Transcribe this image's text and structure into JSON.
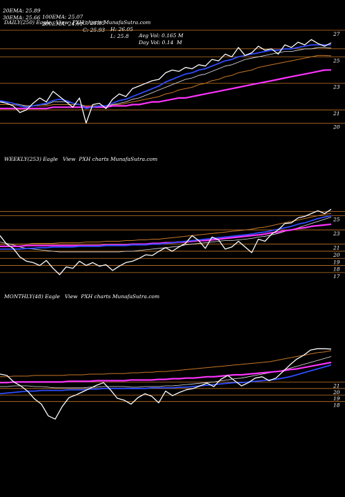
{
  "header": {
    "row1": [
      "20EMA: 25.89",
      "100EMA: 25.07",
      "C: 26.05",
      "H: 26.05",
      "Avg Vol: 0.165 M"
    ],
    "row2": [
      "30EMA: 25.66",
      "200EMA: 24.01",
      "C: 25.93",
      "L: 25.8",
      "Day Vol: 0.14  M"
    ]
  },
  "colors": {
    "background": "#000000",
    "price": "#ffffff",
    "ema_blue": "#2f4cff",
    "ema_pink": "#ff33ff",
    "ema_orange": "#c87828",
    "ema_light": "#e8e8e8",
    "gridline": "#c87828"
  },
  "chart_data": [
    {
      "type": "line",
      "title": "DAILY(250) Eagle   View  PXH charts MunafaSutra.com",
      "y_ticks": [
        "27",
        "25",
        "23",
        "21",
        "20"
      ],
      "gridlines": [
        27,
        25.6,
        25,
        23,
        21,
        20
      ],
      "ylim": [
        19.5,
        27.2
      ],
      "x": [
        0,
        5,
        10,
        15,
        20,
        25,
        30,
        35,
        40,
        45,
        50,
        55,
        60,
        65,
        70,
        75,
        80,
        85,
        90,
        95,
        100,
        105,
        110,
        115,
        120,
        125,
        130,
        135,
        140,
        145,
        150,
        155,
        160,
        165,
        170,
        175,
        180,
        185,
        190,
        195,
        200,
        205,
        210,
        215,
        220,
        225,
        230,
        235,
        240,
        245,
        250
      ],
      "series": [
        {
          "name": "",
          "role": "price",
          "values": [
            21.6,
            21.5,
            21.3,
            20.8,
            21.0,
            21.5,
            21.9,
            21.6,
            22.4,
            22.0,
            21.6,
            21.2,
            21.9,
            20.0,
            21.4,
            21.5,
            21.1,
            21.8,
            22.2,
            22.0,
            22.6,
            22.8,
            23.0,
            23.2,
            23.3,
            23.8,
            24.0,
            23.9,
            24.2,
            24.1,
            24.4,
            24.3,
            24.8,
            24.7,
            25.2,
            25.0,
            25.7,
            25.1,
            25.3,
            25.8,
            25.5,
            25.6,
            25.2,
            25.9,
            25.7,
            26.1,
            25.9,
            26.3,
            26.0,
            25.8,
            26.05
          ]
        },
        {
          "name": "",
          "role": "ema_blue",
          "values": [
            21.7,
            21.6,
            21.5,
            21.3,
            21.2,
            21.3,
            21.4,
            21.5,
            21.7,
            21.8,
            21.7,
            21.5,
            21.4,
            21.1,
            21.2,
            21.3,
            21.3,
            21.5,
            21.7,
            21.8,
            22.0,
            22.2,
            22.4,
            22.6,
            22.8,
            23.1,
            23.3,
            23.5,
            23.7,
            23.8,
            24.0,
            24.1,
            24.3,
            24.5,
            24.7,
            24.8,
            25.0,
            25.1,
            25.2,
            25.3,
            25.4,
            25.5,
            25.5,
            25.6,
            25.6,
            25.7,
            25.8,
            25.9,
            25.9,
            25.9,
            25.9
          ]
        },
        {
          "name": "",
          "role": "ema_pink",
          "values": [
            21.1,
            21.1,
            21.1,
            21.1,
            21.1,
            21.1,
            21.1,
            21.1,
            21.2,
            21.2,
            21.2,
            21.2,
            21.2,
            21.2,
            21.2,
            21.2,
            21.2,
            21.3,
            21.3,
            21.3,
            21.4,
            21.4,
            21.5,
            21.6,
            21.6,
            21.7,
            21.8,
            21.9,
            21.9,
            22.0,
            22.1,
            22.2,
            22.3,
            22.4,
            22.5,
            22.6,
            22.7,
            22.8,
            22.9,
            23.0,
            23.1,
            23.2,
            23.3,
            23.4,
            23.5,
            23.6,
            23.7,
            23.8,
            23.9,
            24.0,
            24.01
          ]
        },
        {
          "name": "",
          "role": "ema_orange",
          "values": [
            21.4,
            21.4,
            21.4,
            21.3,
            21.3,
            21.3,
            21.3,
            21.3,
            21.4,
            21.4,
            21.4,
            21.4,
            21.4,
            21.3,
            21.3,
            21.3,
            21.3,
            21.4,
            21.4,
            21.5,
            21.6,
            21.7,
            21.8,
            21.9,
            22.0,
            22.2,
            22.3,
            22.5,
            22.6,
            22.7,
            22.9,
            23.0,
            23.2,
            23.3,
            23.5,
            23.6,
            23.8,
            23.9,
            24.0,
            24.2,
            24.3,
            24.4,
            24.5,
            24.6,
            24.7,
            24.8,
            24.9,
            25.0,
            25.1,
            25.1,
            25.07
          ]
        },
        {
          "name": "",
          "role": "ema_light",
          "values": [
            21.6,
            21.6,
            21.5,
            21.4,
            21.3,
            21.3,
            21.4,
            21.4,
            21.6,
            21.6,
            21.6,
            21.5,
            21.4,
            21.2,
            21.2,
            21.2,
            21.2,
            21.4,
            21.5,
            21.6,
            21.8,
            21.9,
            22.1,
            22.3,
            22.5,
            22.7,
            22.9,
            23.1,
            23.3,
            23.4,
            23.6,
            23.7,
            23.9,
            24.1,
            24.3,
            24.4,
            24.6,
            24.8,
            24.9,
            25.0,
            25.1,
            25.2,
            25.3,
            25.4,
            25.4,
            25.5,
            25.6,
            25.6,
            25.7,
            25.7,
            25.66
          ]
        }
      ]
    },
    {
      "type": "line",
      "title": "WEEKLY(253) Eagle   View  PXH charts MunafaSutra.com",
      "y_ticks": [
        "25",
        "23",
        "21",
        "20",
        "19",
        "18",
        "17"
      ],
      "gridlines": [
        25.6,
        25,
        23,
        21,
        20,
        19,
        18,
        17
      ],
      "ylim": [
        16.5,
        26.6
      ],
      "x": [
        0,
        5,
        10,
        15,
        20,
        25,
        30,
        35,
        40,
        45,
        50,
        55,
        60,
        65,
        70,
        75,
        80,
        85,
        90,
        95,
        100,
        105,
        110,
        115,
        120,
        125,
        130,
        135,
        140,
        145,
        150,
        155,
        160,
        165,
        170,
        175,
        180,
        185,
        190,
        195,
        200,
        205,
        210,
        215,
        220,
        225,
        230,
        235,
        240,
        245,
        250
      ],
      "series": [
        {
          "name": "",
          "role": "price",
          "values": [
            22.2,
            21.0,
            20.4,
            19.2,
            18.6,
            18.4,
            18.0,
            18.7,
            17.6,
            16.7,
            17.8,
            17.6,
            18.6,
            18.0,
            18.4,
            17.9,
            18.1,
            17.3,
            17.9,
            18.4,
            18.6,
            19.0,
            19.5,
            19.4,
            20.0,
            20.5,
            20.0,
            20.6,
            21.1,
            22.2,
            21.5,
            20.4,
            22.0,
            21.6,
            20.3,
            20.6,
            21.4,
            20.6,
            19.8,
            21.7,
            21.4,
            22.4,
            23.0,
            23.9,
            24.0,
            24.7,
            24.9,
            25.3,
            25.7,
            25.3,
            25.9
          ]
        },
        {
          "name": "",
          "role": "ema_blue",
          "values": [
            20.3,
            20.3,
            20.3,
            20.3,
            20.4,
            20.4,
            20.5,
            20.5,
            20.6,
            20.6,
            20.6,
            20.6,
            20.7,
            20.7,
            20.7,
            20.7,
            20.8,
            20.8,
            20.8,
            20.8,
            20.9,
            20.9,
            20.9,
            21.0,
            21.0,
            21.1,
            21.2,
            21.3,
            21.4,
            21.5,
            21.6,
            21.7,
            21.8,
            21.9,
            22.0,
            22.1,
            22.2,
            22.3,
            22.4,
            22.6,
            22.7,
            22.9,
            23.1,
            23.3,
            23.5,
            23.8,
            24.0,
            24.3,
            24.6,
            24.8,
            25.0
          ]
        },
        {
          "name": "",
          "role": "ema_pink",
          "values": [
            20.7,
            20.7,
            20.7,
            20.7,
            20.8,
            20.8,
            20.8,
            20.8,
            20.8,
            20.8,
            20.8,
            20.8,
            20.8,
            20.8,
            20.8,
            20.8,
            20.9,
            20.9,
            20.9,
            20.9,
            21.0,
            21.0,
            21.0,
            21.1,
            21.1,
            21.2,
            21.2,
            21.3,
            21.3,
            21.4,
            21.5,
            21.5,
            21.6,
            21.7,
            21.8,
            21.9,
            22.0,
            22.1,
            22.2,
            22.3,
            22.4,
            22.6,
            22.7,
            22.9,
            23.0,
            23.2,
            23.3,
            23.5,
            23.6,
            23.7,
            23.8
          ]
        },
        {
          "name": "",
          "role": "ema_orange",
          "values": [
            21.0,
            21.0,
            21.0,
            21.0,
            21.0,
            21.1,
            21.1,
            21.1,
            21.1,
            21.2,
            21.2,
            21.2,
            21.2,
            21.3,
            21.3,
            21.3,
            21.4,
            21.4,
            21.4,
            21.5,
            21.5,
            21.6,
            21.6,
            21.7,
            21.7,
            21.8,
            21.9,
            22.0,
            22.1,
            22.2,
            22.3,
            22.4,
            22.5,
            22.6,
            22.7,
            22.8,
            22.9,
            23.0,
            23.1,
            23.3,
            23.4,
            23.6,
            23.8,
            24.0,
            24.2,
            24.4,
            24.6,
            24.8,
            25.0,
            25.2,
            25.3
          ]
        },
        {
          "name": "",
          "role": "ema_light",
          "values": [
            21.3,
            21.1,
            20.9,
            20.6,
            20.4,
            20.3,
            20.2,
            20.1,
            20.0,
            19.9,
            19.9,
            19.9,
            19.9,
            19.9,
            19.9,
            19.9,
            19.9,
            19.9,
            19.9,
            20.0,
            20.0,
            20.1,
            20.2,
            20.3,
            20.4,
            20.5,
            20.6,
            20.7,
            20.9,
            21.0,
            21.1,
            21.2,
            21.3,
            21.4,
            21.5,
            21.5,
            21.6,
            21.7,
            21.8,
            22.0,
            22.1,
            22.3,
            22.5,
            22.8,
            23.0,
            23.3,
            23.6,
            23.9,
            24.2,
            24.5,
            24.8
          ]
        }
      ]
    },
    {
      "type": "line",
      "title": "MONTHLY(48) Eagle   View  PXH charts MunafaSutra.com",
      "y_ticks": [
        "21",
        "20",
        "19",
        "18"
      ],
      "gridlines": [
        21,
        20,
        19,
        18
      ],
      "ylim": [
        15.0,
        27.5
      ],
      "x": [
        0,
        1,
        2,
        3,
        4,
        5,
        6,
        7,
        8,
        9,
        10,
        11,
        12,
        13,
        14,
        15,
        16,
        17,
        18,
        19,
        20,
        21,
        22,
        23,
        24,
        25,
        26,
        27,
        28,
        29,
        30,
        31,
        32,
        33,
        34,
        35,
        36,
        37,
        38,
        39,
        40,
        41,
        42,
        43,
        44,
        45,
        46,
        47,
        48
      ],
      "series": [
        {
          "name": "",
          "role": "price",
          "values": [
            22.2,
            22.0,
            21.0,
            20.4,
            19.6,
            18.4,
            17.6,
            15.8,
            15.3,
            17.2,
            18.6,
            19.0,
            19.5,
            20.0,
            20.5,
            20.9,
            19.8,
            18.5,
            18.2,
            17.6,
            18.6,
            19.2,
            18.8,
            17.8,
            19.6,
            18.9,
            19.4,
            19.8,
            20.0,
            20.4,
            20.8,
            20.3,
            21.4,
            22.0,
            21.2,
            20.4,
            20.9,
            21.6,
            21.8,
            21.2,
            21.6,
            22.6,
            23.6,
            24.5,
            25.1,
            25.9,
            26.1,
            26.1,
            26.05
          ]
        },
        {
          "name": "",
          "role": "ema_blue",
          "values": [
            19.2,
            19.3,
            19.4,
            19.5,
            19.6,
            19.6,
            19.7,
            19.7,
            19.7,
            19.7,
            19.8,
            19.8,
            19.8,
            19.9,
            19.9,
            20.0,
            20.0,
            20.0,
            20.0,
            20.0,
            20.0,
            20.0,
            20.1,
            20.1,
            20.1,
            20.1,
            20.2,
            20.2,
            20.3,
            20.4,
            20.5,
            20.6,
            20.7,
            20.8,
            20.9,
            20.9,
            21.0,
            21.1,
            21.2,
            21.3,
            21.4,
            21.6,
            21.8,
            22.1,
            22.4,
            22.7,
            23.0,
            23.3,
            23.6
          ]
        },
        {
          "name": "",
          "role": "ema_pink",
          "values": [
            20.9,
            20.9,
            21.0,
            21.0,
            21.0,
            21.0,
            21.0,
            21.0,
            21.0,
            21.0,
            21.1,
            21.1,
            21.1,
            21.1,
            21.2,
            21.2,
            21.2,
            21.2,
            21.2,
            21.3,
            21.3,
            21.3,
            21.3,
            21.4,
            21.4,
            21.5,
            21.5,
            21.6,
            21.6,
            21.7,
            21.8,
            21.8,
            21.9,
            22.0,
            22.1,
            22.1,
            22.2,
            22.3,
            22.4,
            22.5,
            22.6,
            22.7,
            22.9,
            23.0,
            23.2,
            23.4,
            23.6,
            23.8,
            24.0
          ]
        },
        {
          "name": "",
          "role": "ema_orange",
          "values": [
            21.8,
            21.8,
            21.9,
            21.9,
            21.9,
            22.0,
            22.0,
            22.0,
            22.0,
            22.0,
            22.1,
            22.1,
            22.1,
            22.2,
            22.2,
            22.2,
            22.3,
            22.3,
            22.3,
            22.4,
            22.4,
            22.5,
            22.5,
            22.6,
            22.6,
            22.7,
            22.8,
            22.9,
            23.0,
            23.1,
            23.2,
            23.3,
            23.4,
            23.5,
            23.6,
            23.7,
            23.8,
            23.9,
            24.0,
            24.1,
            24.3,
            24.5,
            24.7,
            24.9,
            25.1,
            25.3,
            25.5,
            25.6,
            25.8
          ]
        },
        {
          "name": "",
          "role": "ema_light",
          "values": [
            20.3,
            20.3,
            20.4,
            20.4,
            20.4,
            20.3,
            20.3,
            20.2,
            20.1,
            20.1,
            20.1,
            20.1,
            20.1,
            20.2,
            20.2,
            20.3,
            20.3,
            20.3,
            20.3,
            20.2,
            20.2,
            20.3,
            20.3,
            20.3,
            20.4,
            20.4,
            20.5,
            20.6,
            20.7,
            20.8,
            20.9,
            21.0,
            21.2,
            21.3,
            21.5,
            21.6,
            21.8,
            22.0,
            22.2,
            22.4,
            22.6,
            22.8,
            23.1,
            23.4,
            23.7,
            24.0,
            24.3,
            24.6,
            24.9
          ]
        }
      ]
    }
  ]
}
